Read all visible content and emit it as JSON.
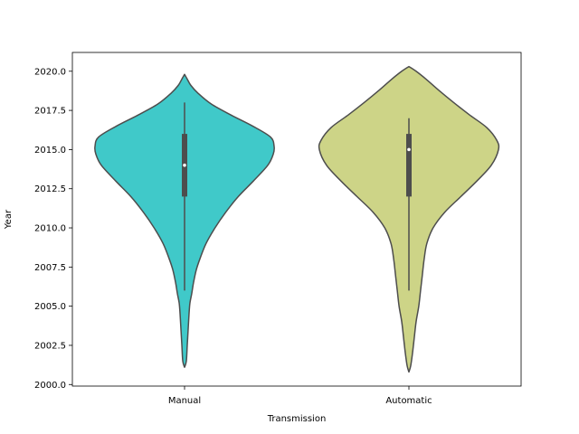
{
  "chart_data": {
    "type": "violin",
    "title": "",
    "xlabel": "Transmission",
    "ylabel": "Year",
    "ylim": [
      1999.9,
      2021.2
    ],
    "yticks": [
      2000.0,
      2002.5,
      2005.0,
      2007.5,
      2010.0,
      2012.5,
      2015.0,
      2017.5,
      2020.0
    ],
    "ytick_labels": [
      "2000.0",
      "2002.5",
      "2005.0",
      "2007.5",
      "2010.0",
      "2012.5",
      "2015.0",
      "2017.5",
      "2020.0"
    ],
    "categories": [
      "Manual",
      "Automatic"
    ],
    "grid": false,
    "violins": [
      {
        "category": "Manual",
        "color": "#40c9c9",
        "whisker_low": 2006.0,
        "q1": 2012.0,
        "median": 2014.0,
        "q3": 2016.0,
        "whisker_high": 2018.0,
        "density_profile": [
          [
            2001.1,
            0.0
          ],
          [
            2001.5,
            0.02
          ],
          [
            2002.5,
            0.03
          ],
          [
            2003.5,
            0.04
          ],
          [
            2004.5,
            0.05
          ],
          [
            2005.2,
            0.06
          ],
          [
            2005.8,
            0.08
          ],
          [
            2006.5,
            0.1
          ],
          [
            2007.3,
            0.13
          ],
          [
            2008.0,
            0.17
          ],
          [
            2009.0,
            0.24
          ],
          [
            2010.0,
            0.34
          ],
          [
            2011.0,
            0.46
          ],
          [
            2012.0,
            0.6
          ],
          [
            2013.0,
            0.77
          ],
          [
            2014.0,
            0.93
          ],
          [
            2014.7,
            0.99
          ],
          [
            2015.2,
            1.0
          ],
          [
            2015.8,
            0.96
          ],
          [
            2016.5,
            0.76
          ],
          [
            2017.2,
            0.52
          ],
          [
            2017.9,
            0.3
          ],
          [
            2018.6,
            0.15
          ],
          [
            2019.1,
            0.07
          ],
          [
            2019.5,
            0.03
          ],
          [
            2019.8,
            0.0
          ]
        ]
      },
      {
        "category": "Automatic",
        "color": "#cdd487",
        "whisker_low": 2006.0,
        "q1": 2012.0,
        "median": 2015.0,
        "q3": 2016.0,
        "whisker_high": 2017.0,
        "density_profile": [
          [
            2000.8,
            0.0
          ],
          [
            2001.2,
            0.02
          ],
          [
            2002.0,
            0.04
          ],
          [
            2003.0,
            0.06
          ],
          [
            2004.0,
            0.08
          ],
          [
            2005.0,
            0.11
          ],
          [
            2006.0,
            0.13
          ],
          [
            2007.0,
            0.15
          ],
          [
            2008.0,
            0.17
          ],
          [
            2009.0,
            0.2
          ],
          [
            2010.0,
            0.27
          ],
          [
            2011.0,
            0.4
          ],
          [
            2012.0,
            0.58
          ],
          [
            2013.0,
            0.76
          ],
          [
            2014.0,
            0.92
          ],
          [
            2015.0,
            1.0
          ],
          [
            2015.6,
            0.98
          ],
          [
            2016.4,
            0.87
          ],
          [
            2017.2,
            0.68
          ],
          [
            2018.0,
            0.5
          ],
          [
            2018.8,
            0.33
          ],
          [
            2019.5,
            0.19
          ],
          [
            2020.0,
            0.08
          ],
          [
            2020.3,
            0.0
          ]
        ]
      }
    ]
  }
}
